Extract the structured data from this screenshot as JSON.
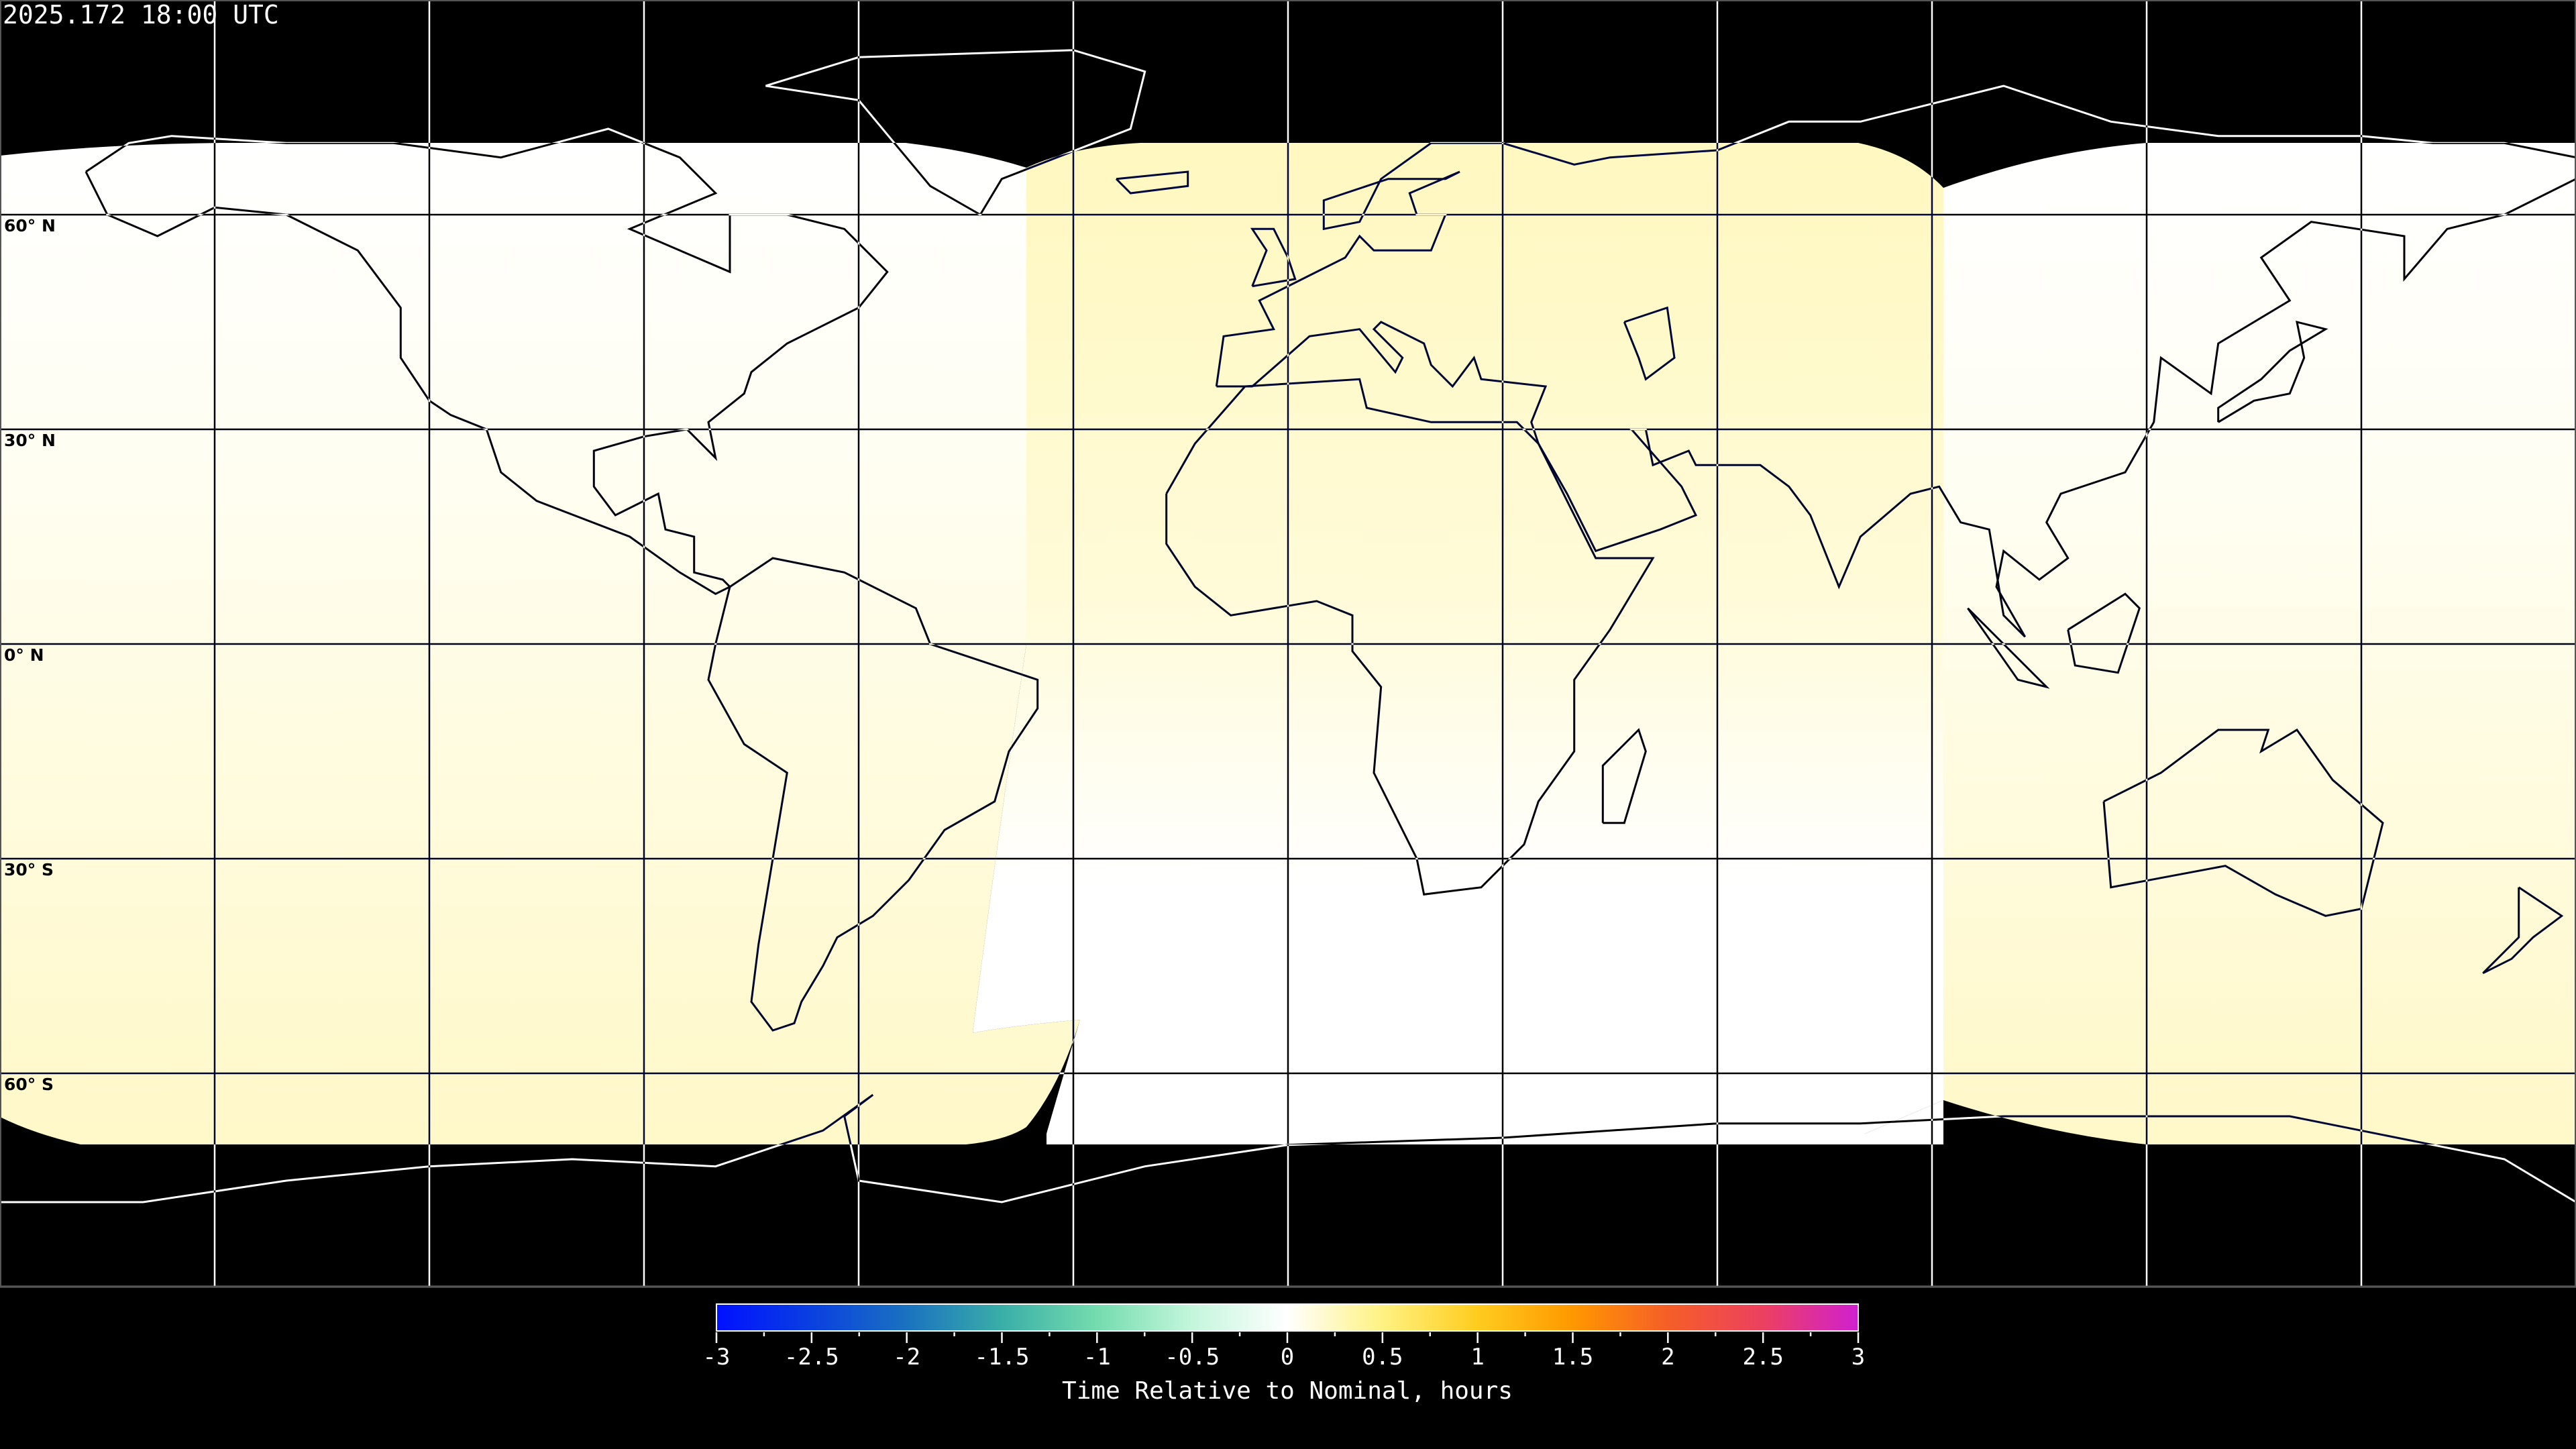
{
  "title": "2025.172 18:00 UTC",
  "map": {
    "projection": "equirectangular",
    "latitude_labels": [
      "60° N",
      "30° N",
      "0° N",
      "30° S",
      "60° S"
    ],
    "grid_spacing_degrees": 30,
    "colors": {
      "background": "#000000",
      "nominal": "#ffffff",
      "slightly_late": "#fff8c4"
    }
  },
  "colorbar": {
    "label": "Time Relative to Nominal, hours",
    "range": [
      -3,
      3
    ],
    "ticks": [
      "-3",
      "-2.5",
      "-2",
      "-1.5",
      "-1",
      "-0.5",
      "0",
      "0.5",
      "1",
      "1.5",
      "2",
      "2.5",
      "3"
    ],
    "tick_values": [
      -3,
      -2.5,
      -2,
      -1.5,
      -1,
      -0.5,
      0,
      0.5,
      1,
      1.5,
      2,
      2.5,
      3
    ],
    "color_stops": [
      "#0010ff",
      "#0a40e0",
      "#1a72c0",
      "#3aaea8",
      "#74dcae",
      "#c4f6dc",
      "#ffffff",
      "#fff282",
      "#ffcc1e",
      "#ff9800",
      "#f55e28",
      "#ec4060",
      "#d020d0"
    ]
  }
}
